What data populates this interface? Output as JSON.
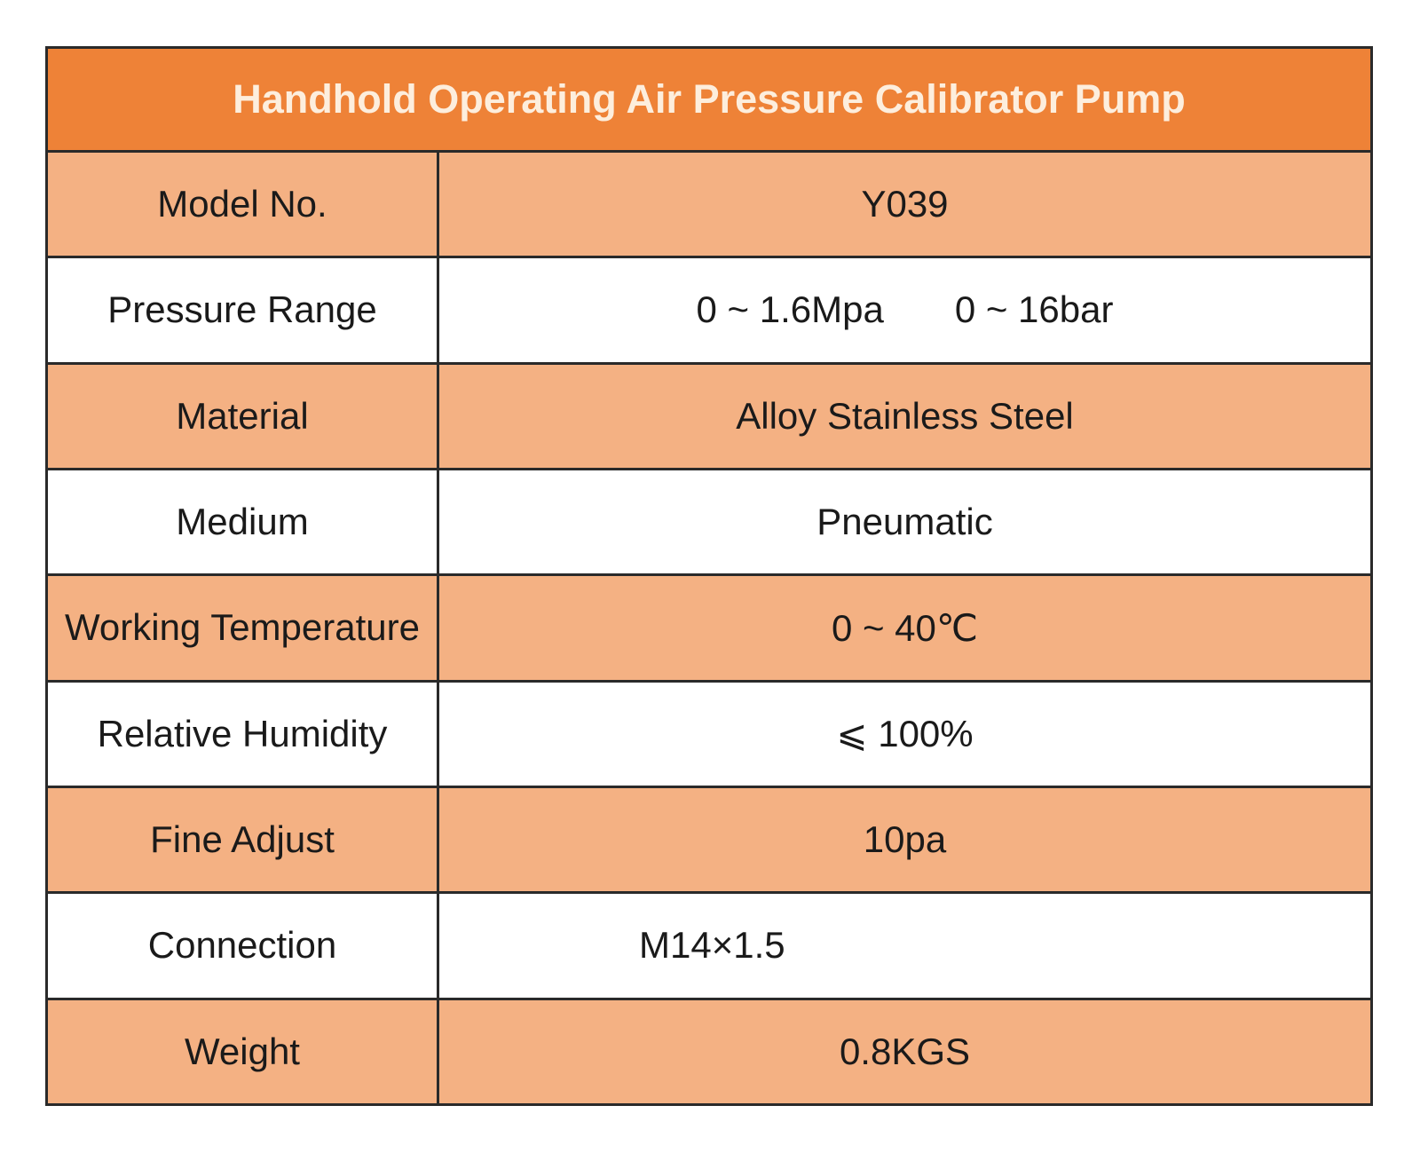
{
  "title": "Handhold Operating Air Pressure Calibrator Pump",
  "colors": {
    "header": "#ee8237",
    "shaded_row": "#f4b183",
    "plain_row": "#ffffff",
    "border": "#2a2a2a",
    "header_text": "#fdeedd"
  },
  "rows": [
    {
      "label": "Model No.",
      "value": "Y039"
    },
    {
      "label": "Pressure Range",
      "value": "0 ~ 1.6Mpa",
      "value2": "0 ~ 16bar"
    },
    {
      "label": "Material",
      "value": "Alloy Stainless Steel"
    },
    {
      "label": "Medium",
      "value": "Pneumatic"
    },
    {
      "label": "Working Temperature",
      "value": "0 ~ 40℃"
    },
    {
      "label": "Relative Humidity",
      "value": "⩽ 100%"
    },
    {
      "label": "Fine Adjust",
      "value": "10pa"
    },
    {
      "label": "Connection",
      "value": "M14×1.5"
    },
    {
      "label": "Weight",
      "value": "0.8KGS"
    }
  ]
}
